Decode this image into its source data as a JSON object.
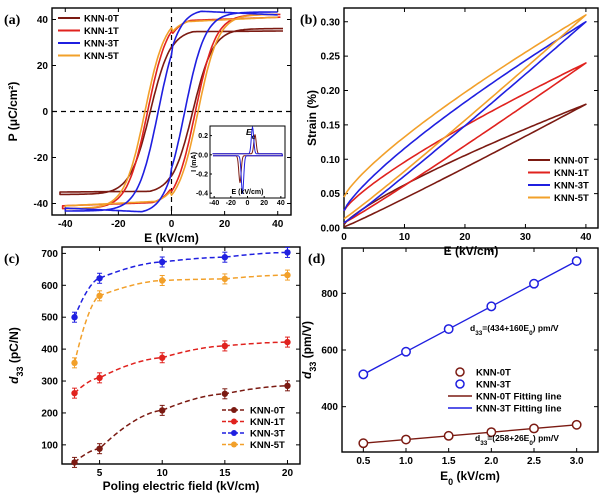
{
  "colors": {
    "KNN-0T": "#7b1a12",
    "KNN-1T": "#e0221e",
    "KNN-3T": "#1f1fe0",
    "KNN-5T": "#f2a02a"
  },
  "chart_data": [
    {
      "panel": "(a)",
      "type": "line",
      "xlabel": "E (kV/cm)",
      "ylabel": "P (μC/cm²)",
      "xlim": [
        -45,
        45
      ],
      "ylim": [
        -45,
        45
      ],
      "xticks": [
        -40,
        -20,
        0,
        20,
        40
      ],
      "yticks": [
        -40,
        -20,
        0,
        20,
        40
      ],
      "legend": "top-left",
      "series": [
        {
          "name": "KNN-0T",
          "Emax": 42,
          "Pmax": 35,
          "Pr": 27,
          "Ec": 8
        },
        {
          "name": "KNN-1T",
          "Emax": 41,
          "Pmax": 41,
          "Pr": 30,
          "Ec": 9
        },
        {
          "name": "KNN-3T",
          "Emax": 40,
          "Pmax": 42,
          "Pr": 31,
          "Ec": 5
        },
        {
          "name": "KNN-5T",
          "Emax": 40,
          "Pmax": 41,
          "Pr": 30,
          "Ec": 10
        }
      ],
      "inset": {
        "ylabel": "I (mA)",
        "xlabel": "E (kV/cm)",
        "annotation": "Ec",
        "xticks": [
          -40,
          -20,
          0,
          20,
          40
        ],
        "yticks": [
          -0.4,
          -0.2,
          0.0,
          0.2
        ]
      }
    },
    {
      "panel": "(b)",
      "type": "line",
      "xlabel": "E (kV/cm)",
      "ylabel": "Strain (%)",
      "xlim": [
        0,
        42
      ],
      "ylim": [
        0,
        0.32
      ],
      "xticks": [
        0,
        10,
        20,
        30,
        40
      ],
      "yticks": [
        0.0,
        0.05,
        0.1,
        0.15,
        0.2,
        0.25,
        0.3
      ],
      "legend": "bottom-right",
      "series": [
        {
          "name": "KNN-0T",
          "max": 0.18,
          "min": 0.005
        },
        {
          "name": "KNN-1T",
          "max": 0.24,
          "min": 0.025
        },
        {
          "name": "KNN-3T",
          "max": 0.3,
          "min": 0.025
        },
        {
          "name": "KNN-5T",
          "max": 0.31,
          "min": 0.045
        }
      ]
    },
    {
      "panel": "(c)",
      "type": "scatter",
      "xlabel": "Poling electric field (kV/cm)",
      "ylabel": "d33 (pC/N)",
      "xlim": [
        2,
        21
      ],
      "ylim": [
        40,
        720
      ],
      "xticks": [
        5,
        10,
        15,
        20
      ],
      "yticks": [
        100,
        200,
        300,
        400,
        500,
        600,
        700
      ],
      "x": [
        3,
        5,
        10,
        15,
        20
      ],
      "legend": "bottom-right",
      "series": [
        {
          "name": "KNN-0T",
          "values": [
            45,
            88,
            208,
            260,
            285
          ]
        },
        {
          "name": "KNN-1T",
          "values": [
            262,
            310,
            373,
            410,
            422
          ]
        },
        {
          "name": "KNN-3T",
          "values": [
            500,
            622,
            673,
            688,
            703
          ]
        },
        {
          "name": "KNN-5T",
          "values": [
            357,
            567,
            615,
            620,
            632
          ]
        }
      ]
    },
    {
      "panel": "(d)",
      "type": "scatter",
      "xlabel": "E0 (kV/cm)",
      "ylabel": "d33 (pm/V)",
      "xlim": [
        0.25,
        3.25
      ],
      "ylim": [
        240,
        960
      ],
      "xticks": [
        0.5,
        1.0,
        1.5,
        2.0,
        2.5,
        3.0
      ],
      "yticks": [
        400,
        600,
        800
      ],
      "x": [
        0.5,
        1.0,
        1.5,
        2.0,
        2.5,
        3.0
      ],
      "legend": "middle-right",
      "series": [
        {
          "name": "KNN-0T",
          "values": [
            271,
            284,
            297,
            310,
            323,
            336
          ]
        },
        {
          "name": "KNN-3T",
          "values": [
            514,
            594,
            674,
            754,
            834,
            914
          ]
        },
        {
          "name": "KNN-0T Fitting line",
          "fit": [
            258,
            26
          ]
        },
        {
          "name": "KNN-3T Fitting line",
          "fit": [
            434,
            160
          ]
        }
      ],
      "annotations": [
        "d33=(434+160E0) pm/V",
        "d33=(258+26E0) pm/V"
      ]
    }
  ]
}
